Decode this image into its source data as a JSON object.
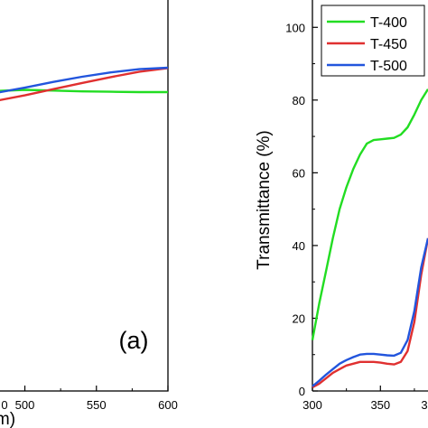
{
  "chart_data": [
    {
      "panel": "(a)",
      "type": "line",
      "xlabel": "m)",
      "ylabel": "",
      "xlim": [
        470,
        600
      ],
      "x_ticks": [
        "500",
        "550",
        "600"
      ],
      "x_tick_partial": "0",
      "grid": false,
      "series": [
        {
          "name": "T-400",
          "color": "#22dd22",
          "x": [
            470,
            480,
            500,
            520,
            540,
            560,
            580,
            600
          ],
          "y": [
            81.8,
            82.5,
            82.8,
            82.6,
            82.4,
            82.3,
            82.2,
            82.2
          ]
        },
        {
          "name": "T-450",
          "color": "#e03030",
          "x": [
            470,
            480,
            500,
            520,
            540,
            560,
            580,
            600
          ],
          "y": [
            79.0,
            79.8,
            81.3,
            83.0,
            84.7,
            86.3,
            87.8,
            88.8
          ]
        },
        {
          "name": "T-500",
          "color": "#2255dd",
          "x": [
            470,
            480,
            500,
            520,
            540,
            560,
            580,
            600
          ],
          "y": [
            81.5,
            82.0,
            83.4,
            85.0,
            86.4,
            87.6,
            88.5,
            88.9
          ]
        }
      ]
    },
    {
      "type": "line",
      "xlabel": "",
      "ylabel": "Transmittance (%)",
      "xlim": [
        300,
        385
      ],
      "ylim": [
        0,
        110
      ],
      "x_ticks": [
        300,
        350
      ],
      "x_tick_partial": "3",
      "y_ticks": [
        0,
        20,
        40,
        60,
        80,
        100
      ],
      "grid": false,
      "legend": {
        "position": "top",
        "entries": [
          "T-400",
          "T-450",
          "T-500"
        ]
      },
      "series": [
        {
          "name": "T-400",
          "color": "#22dd22",
          "x": [
            300,
            305,
            310,
            315,
            320,
            325,
            330,
            335,
            340,
            345,
            350,
            355,
            360,
            365,
            370,
            375,
            380,
            385
          ],
          "y": [
            14,
            24,
            33,
            42,
            50,
            56,
            61,
            65,
            68,
            69,
            69.2,
            69.4,
            69.6,
            70.5,
            72.5,
            76,
            80,
            83
          ]
        },
        {
          "name": "T-450",
          "color": "#e03030",
          "x": [
            300,
            305,
            310,
            315,
            320,
            325,
            330,
            335,
            340,
            345,
            350,
            355,
            360,
            365,
            370,
            375,
            380,
            385
          ],
          "y": [
            1,
            2,
            3.5,
            5,
            6,
            7,
            7.5,
            8,
            8,
            8,
            7.8,
            7.5,
            7.3,
            8,
            11,
            19,
            32,
            42
          ]
        },
        {
          "name": "T-500",
          "color": "#2255dd",
          "x": [
            300,
            305,
            310,
            315,
            320,
            325,
            330,
            335,
            340,
            345,
            350,
            355,
            360,
            365,
            370,
            375,
            380,
            385
          ],
          "y": [
            1.3,
            2.8,
            4.5,
            6,
            7.5,
            8.5,
            9.3,
            10,
            10.2,
            10.2,
            10,
            9.8,
            9.7,
            10.5,
            14,
            22,
            34,
            42
          ]
        }
      ]
    }
  ]
}
